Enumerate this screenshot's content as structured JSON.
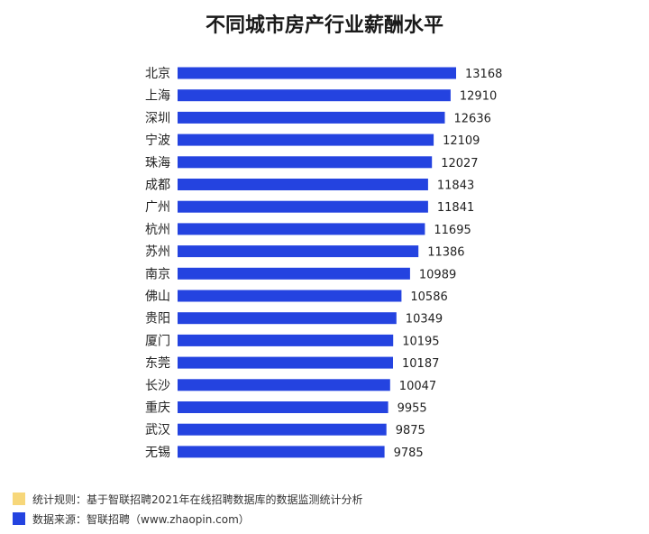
{
  "chart_data": {
    "type": "bar",
    "orientation": "horizontal",
    "title": "不同城市房产行业薪酬水平",
    "categories": [
      "北京",
      "上海",
      "深圳",
      "宁波",
      "珠海",
      "成都",
      "广州",
      "杭州",
      "苏州",
      "南京",
      "佛山",
      "贵阳",
      "厦门",
      "东莞",
      "长沙",
      "重庆",
      "武汉",
      "无锡"
    ],
    "values": [
      13168,
      12910,
      12636,
      12109,
      12027,
      11843,
      11841,
      11695,
      11386,
      10989,
      10586,
      10349,
      10195,
      10187,
      10047,
      9955,
      9875,
      9785
    ],
    "data_labels": true,
    "grid": false,
    "bar_color": "#2443e0",
    "xlim": [
      0,
      13168
    ]
  },
  "notes": [
    {
      "text": "统计规则：基于智联招聘2021年在线招聘数据库的数据监测统计分析",
      "color": "#f7d77a"
    },
    {
      "text": "数据来源：智联招聘（www.zhaopin.com）",
      "color": "#2443e0"
    }
  ]
}
